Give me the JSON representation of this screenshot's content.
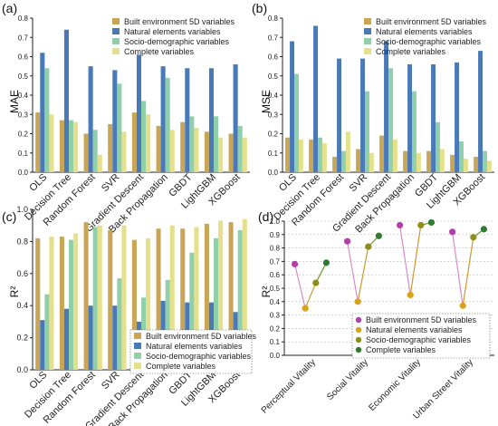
{
  "colors": {
    "built": "#C9A656",
    "natural": "#4A79B7",
    "socio": "#8FCFA9",
    "complete": "#E5E08C",
    "p_built": "#B23FA8",
    "p_natural": "#D9A21C",
    "p_socio": "#8C8E16",
    "p_complete": "#2E7D2E",
    "line_social": "#C99A2E",
    "line_pink": "#D58BC9"
  },
  "chart_data": [
    {
      "panel": "(a)",
      "type": "bar",
      "ylabel": "MAE",
      "ylim": [
        0.0,
        0.8
      ],
      "yticks": [
        "0.0",
        "0.1",
        "0.2",
        "0.3",
        "0.4",
        "0.5",
        "0.6",
        "0.7",
        "0.8"
      ],
      "categories": [
        "OLS",
        "Decision Tree",
        "Random Forest",
        "SVR",
        "Gradient Descent",
        "Back Propagation",
        "GBDT",
        "LightGBM",
        "XGBoost"
      ],
      "series": [
        {
          "name": "Built environment 5D variables",
          "color_key": "built",
          "values": [
            0.31,
            0.27,
            0.2,
            0.25,
            0.31,
            0.24,
            0.26,
            0.21,
            0.2
          ]
        },
        {
          "name": "Natural elements variables",
          "color_key": "natural",
          "values": [
            0.62,
            0.74,
            0.55,
            0.53,
            0.61,
            0.55,
            0.54,
            0.54,
            0.56
          ]
        },
        {
          "name": "Socio-demographic variables",
          "color_key": "socio",
          "values": [
            0.54,
            0.27,
            0.22,
            0.46,
            0.37,
            0.49,
            0.29,
            0.29,
            0.24
          ]
        },
        {
          "name": "Complete variables",
          "color_key": "complete",
          "values": [
            0.3,
            0.26,
            0.09,
            0.21,
            0.3,
            0.22,
            0.23,
            0.18,
            0.18
          ]
        }
      ]
    },
    {
      "panel": "(b)",
      "type": "bar",
      "ylabel": "MSE",
      "ylim": [
        0.0,
        0.8
      ],
      "yticks": [
        "0.0",
        "0.1",
        "0.2",
        "0.3",
        "0.4",
        "0.5",
        "0.6",
        "0.7",
        "0.8"
      ],
      "categories": [
        "OLS",
        "Decision Tree",
        "Random Forest",
        "SVR",
        "Gradient Descent",
        "Back Propagation",
        "GBDT",
        "LightGBM",
        "XGBoost"
      ],
      "series": [
        {
          "name": "Built environment 5D variables",
          "color_key": "built",
          "values": [
            0.18,
            0.17,
            0.08,
            0.12,
            0.19,
            0.11,
            0.11,
            0.09,
            0.08
          ]
        },
        {
          "name": "Natural elements variables",
          "color_key": "natural",
          "values": [
            0.68,
            0.76,
            0.59,
            0.59,
            0.68,
            0.56,
            0.56,
            0.57,
            0.63
          ]
        },
        {
          "name": "Socio-demographic variables",
          "color_key": "socio",
          "values": [
            0.51,
            0.18,
            0.11,
            0.42,
            0.54,
            0.42,
            0.26,
            0.16,
            0.11
          ]
        },
        {
          "name": "Complete variables",
          "color_key": "complete",
          "values": [
            0.17,
            0.15,
            0.21,
            0.1,
            0.17,
            0.1,
            0.12,
            0.07,
            0.06
          ]
        }
      ]
    },
    {
      "panel": "(c)",
      "type": "bar",
      "ylabel": "R²",
      "ylim": [
        0.0,
        1.0
      ],
      "yticks": [
        "0.0",
        "0.2",
        "0.4",
        "0.6",
        "0.8",
        "1.0"
      ],
      "categories": [
        "OLS",
        "Decision Tree",
        "Random Forest",
        "SVR",
        "Gradient Descent",
        "Back Propagation",
        "GBDT",
        "LightGBM",
        "XGBoost"
      ],
      "series": [
        {
          "name": "Built environment 5D variables",
          "color_key": "built",
          "values": [
            0.82,
            0.83,
            0.92,
            0.87,
            0.81,
            0.88,
            0.88,
            0.91,
            0.92
          ]
        },
        {
          "name": "Natural elements variables",
          "color_key": "natural",
          "values": [
            0.31,
            0.38,
            0.4,
            0.4,
            0.3,
            0.43,
            0.42,
            0.42,
            0.36
          ]
        },
        {
          "name": "Socio-demographic variables",
          "color_key": "socio",
          "values": [
            0.47,
            0.81,
            0.89,
            0.57,
            0.45,
            0.56,
            0.73,
            0.82,
            0.87
          ]
        },
        {
          "name": "Complete variables",
          "color_key": "complete",
          "values": [
            0.83,
            0.85,
            0.9,
            0.9,
            0.82,
            0.9,
            0.89,
            0.93,
            0.94
          ]
        }
      ]
    },
    {
      "panel": "(d)",
      "type": "scatter",
      "ylabel": "R²",
      "ylim": [
        0.0,
        1.0
      ],
      "yticks": [
        "0.0",
        "0.1",
        "0.2",
        "0.3",
        "0.4",
        "0.5",
        "0.6",
        "0.7",
        "0.8",
        "0.9",
        "1.0"
      ],
      "categories": [
        "Perceptual Vitality",
        "Social Vitality",
        "Economic Vitality",
        "Urban Street Vitality"
      ],
      "series": [
        {
          "name": "Built environment 5D variables",
          "color_key": "p_built",
          "values": [
            0.68,
            0.85,
            0.97,
            0.92
          ]
        },
        {
          "name": "Natural elements variables",
          "color_key": "p_natural",
          "values": [
            0.35,
            0.4,
            0.45,
            0.37
          ]
        },
        {
          "name": "Socio-demographic variables",
          "color_key": "p_socio",
          "values": [
            0.54,
            0.81,
            0.97,
            0.88
          ]
        },
        {
          "name": "Complete variables",
          "color_key": "p_complete",
          "values": [
            0.69,
            0.89,
            0.99,
            0.94
          ]
        }
      ]
    }
  ]
}
